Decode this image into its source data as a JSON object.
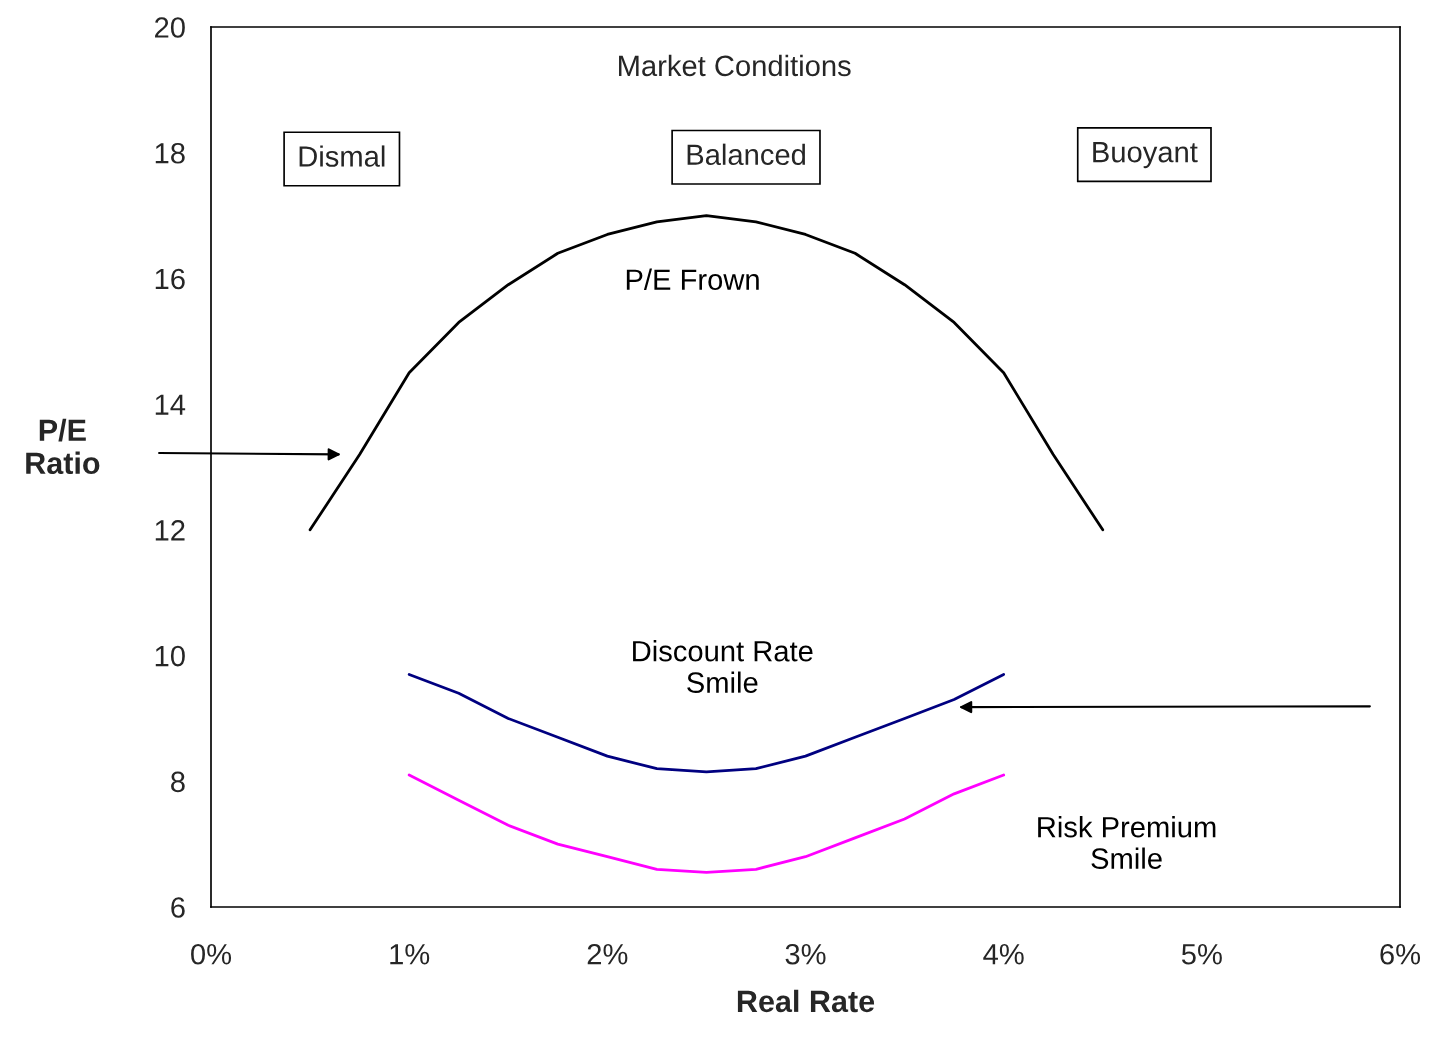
{
  "chart_data": {
    "type": "line",
    "xlabel": "Real Rate",
    "ylabel": "P/E\nRatio",
    "xlim": [
      0,
      6
    ],
    "xticks": [
      {
        "value": 0,
        "label": "0%"
      },
      {
        "value": 1,
        "label": "1%"
      },
      {
        "value": 2,
        "label": "2%"
      },
      {
        "value": 3,
        "label": "3%"
      },
      {
        "value": 4,
        "label": "4%"
      },
      {
        "value": 5,
        "label": "5%"
      },
      {
        "value": 6,
        "label": "6%"
      }
    ],
    "ylim": [
      6,
      20
    ],
    "yticks": [
      6,
      8,
      10,
      12,
      14,
      16,
      18,
      20
    ],
    "grid": false,
    "legend": false,
    "marker": "none",
    "line_style": "solid",
    "annotations": [
      "Market Conditions",
      "Dismal",
      "Balanced",
      "Buoyant"
    ],
    "series": [
      {
        "name": "P/E Frown",
        "color": "#000000",
        "x": [
          0.5,
          0.75,
          1.0,
          1.25,
          1.5,
          1.75,
          2.0,
          2.25,
          2.5,
          2.75,
          3.0,
          3.25,
          3.5,
          3.75,
          4.0,
          4.25,
          4.5
        ],
        "values": [
          12.0,
          13.2,
          14.5,
          15.3,
          15.9,
          16.4,
          16.7,
          16.9,
          17.0,
          16.9,
          16.7,
          16.4,
          15.9,
          15.3,
          14.5,
          13.2,
          12.0
        ]
      },
      {
        "name": "Discount Rate\nSmile",
        "color": "#000080",
        "x": [
          1.0,
          1.25,
          1.5,
          1.75,
          2.0,
          2.25,
          2.5,
          2.75,
          3.0,
          3.25,
          3.5,
          3.75,
          4.0
        ],
        "values": [
          9.7,
          9.4,
          9.0,
          8.7,
          8.4,
          8.2,
          8.15,
          8.2,
          8.4,
          8.7,
          9.0,
          9.3,
          9.7
        ]
      },
      {
        "name": "Risk Premium\nSmile",
        "color": "#ff00ff",
        "x": [
          1.0,
          1.25,
          1.5,
          1.75,
          2.0,
          2.25,
          2.5,
          2.75,
          3.0,
          3.25,
          3.5,
          3.75,
          4.0
        ],
        "values": [
          8.1,
          7.7,
          7.3,
          7.0,
          6.8,
          6.6,
          6.55,
          6.6,
          6.8,
          7.1,
          7.4,
          7.8,
          8.1
        ]
      }
    ]
  }
}
